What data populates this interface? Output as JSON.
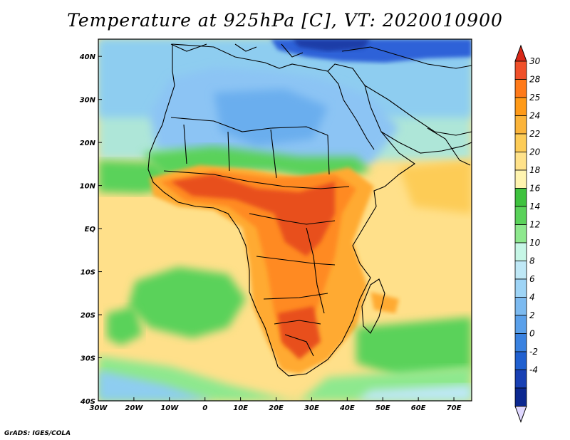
{
  "title": "Temperature at 925hPa [C], VT: 2020010900",
  "credit": "GrADS: IGES/COLA",
  "map": {
    "lon_labels": [
      "30W",
      "20W",
      "10W",
      "0",
      "10E",
      "20E",
      "30E",
      "40E",
      "50E",
      "60E",
      "70E"
    ],
    "lat_labels": [
      "40N",
      "30N",
      "20N",
      "10N",
      "EQ",
      "10S",
      "20S",
      "30S",
      "40S"
    ],
    "lon_range": [
      -30,
      75
    ],
    "lat_range": [
      -40,
      44
    ]
  },
  "colorbar": {
    "levels": [
      "30",
      "28",
      "25",
      "24",
      "22",
      "20",
      "18",
      "16",
      "14",
      "12",
      "10",
      "8",
      "6",
      "4",
      "2",
      "0",
      "-2",
      "-4"
    ],
    "colors": [
      "#f0502a",
      "#ff7a1a",
      "#ff9a18",
      "#fbb43a",
      "#fdcc57",
      "#ffe28a",
      "#fff4b0",
      "#3ec23e",
      "#5ad25a",
      "#8ee88e",
      "#c6f6e6",
      "#bfe8f6",
      "#9ed4f6",
      "#7cbaf0",
      "#5aa0ea",
      "#3a82e0",
      "#2060d0",
      "#1840b4",
      "#0c2890"
    ],
    "top_color": "#d82818",
    "bottom_color": "#e0d8ff"
  },
  "colors": {
    "warm_peak": "#e8501a",
    "warm": "#ffaa30",
    "ocean_mild": "#ffe08a",
    "green_band": "#5ad25a",
    "sahara_blue": "#8cc4f4",
    "north_cold": "#2050d0",
    "border": "#000000"
  }
}
